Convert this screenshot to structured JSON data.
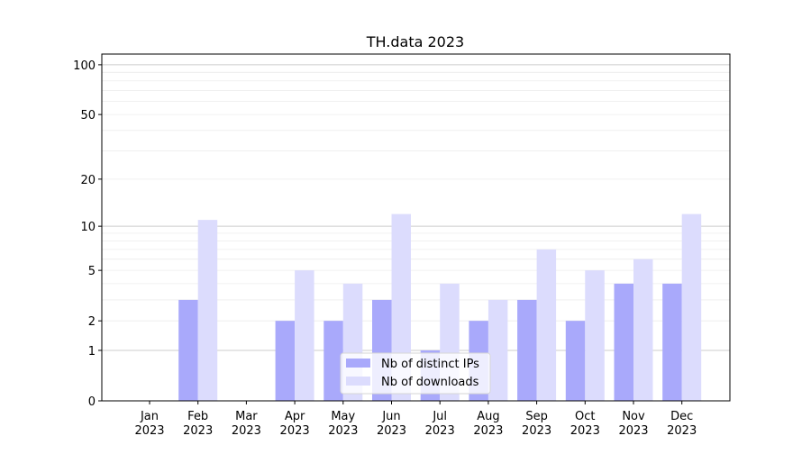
{
  "chart_data": {
    "type": "bar",
    "title": "TH.data 2023",
    "xlabel": "",
    "ylabel": "",
    "yscale": "log10(1+y)",
    "ylim": [
      0,
      116
    ],
    "yticks": [
      0,
      1,
      2,
      5,
      10,
      20,
      50,
      100
    ],
    "grid": "horizontal, major at 1/10/100, minor between",
    "legend_placement": "lower-center",
    "categories": [
      "Jan\n2023",
      "Feb\n2023",
      "Mar\n2023",
      "Apr\n2023",
      "May\n2023",
      "Jun\n2023",
      "Jul\n2023",
      "Aug\n2023",
      "Sep\n2023",
      "Oct\n2023",
      "Nov\n2023",
      "Dec\n2023"
    ],
    "series": [
      {
        "name": "Nb of distinct IPs",
        "color": "#a9a9fb",
        "values": [
          0,
          3,
          0,
          2,
          2,
          3,
          1,
          2,
          3,
          2,
          4,
          4
        ]
      },
      {
        "name": "Nb of downloads",
        "color": "#dcdcfd",
        "values": [
          0,
          11,
          0,
          5,
          4,
          12,
          4,
          3,
          7,
          5,
          6,
          12
        ]
      }
    ]
  }
}
